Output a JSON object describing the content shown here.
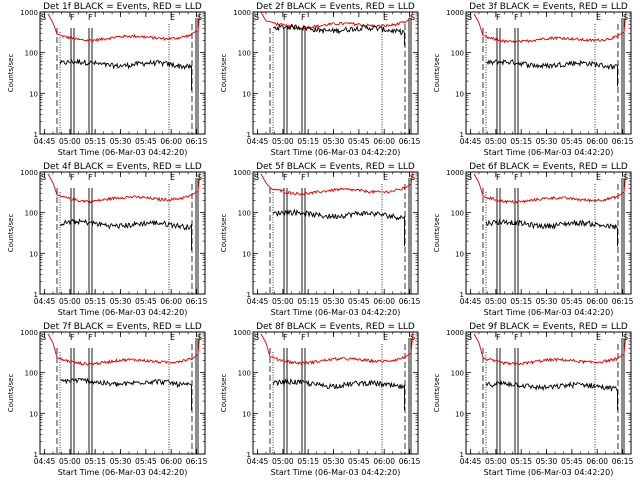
{
  "chart_data": [
    {
      "type": "line",
      "title": "Det 1f BLACK = Events, RED = LLD",
      "xlabel": "Start Time (06-Mar-03 04:42:20)",
      "ylabel": "Counts/sec",
      "x_ticks": [
        "04:45",
        "05:00",
        "05:15",
        "05:30",
        "05:45",
        "06:00",
        "06:15"
      ],
      "y_ticks": [
        "1",
        "10",
        "100",
        "1000"
      ],
      "ylim": [
        1,
        1000
      ],
      "series": [
        {
          "name": "Events",
          "color": "#000000",
          "level": 55,
          "end_drop": 12
        },
        {
          "name": "LLD",
          "color": "#e00000",
          "level": 220,
          "start": 900,
          "end": 1000
        }
      ],
      "markers": [
        {
          "label": "S",
          "time": "04:45"
        },
        {
          "label": "F",
          "time": "05:00"
        },
        {
          "label": "F",
          "time": "05:15"
        },
        {
          "label": "E",
          "time": "06:00"
        },
        {
          "label": "S",
          "time": "06:15"
        }
      ]
    },
    {
      "type": "line",
      "title": "Det 2f BLACK = Events, RED = LLD",
      "xlabel": "Start Time (06-Mar-03 04:42:20)",
      "ylabel": "Counts/sec",
      "x_ticks": [
        "04:45",
        "05:00",
        "05:15",
        "05:30",
        "05:45",
        "06:00",
        "06:15"
      ],
      "y_ticks": [
        "1",
        "10",
        "100",
        "1000"
      ],
      "ylim": [
        1,
        1000
      ],
      "series": [
        {
          "name": "Events",
          "color": "#000000",
          "level": 400,
          "end_drop": 150
        },
        {
          "name": "LLD",
          "color": "#e00000",
          "level": 450,
          "start": 1000,
          "end": 1000
        }
      ],
      "markers": [
        {
          "label": "S",
          "time": "04:45"
        },
        {
          "label": "F",
          "time": "05:00"
        },
        {
          "label": "F",
          "time": "05:15"
        },
        {
          "label": "E",
          "time": "06:00"
        },
        {
          "label": "S",
          "time": "06:15"
        }
      ]
    },
    {
      "type": "line",
      "title": "Det 3f BLACK = Events, RED = LLD",
      "xlabel": "Start Time (06-Mar-03 04:42:20)",
      "ylabel": "Counts/sec",
      "x_ticks": [
        "04:45",
        "05:00",
        "05:15",
        "05:30",
        "05:45",
        "06:00",
        "06:15"
      ],
      "y_ticks": [
        "1",
        "10",
        "100",
        "1000"
      ],
      "ylim": [
        1,
        1000
      ],
      "series": [
        {
          "name": "Events",
          "color": "#000000",
          "level": 55,
          "end_drop": 15
        },
        {
          "name": "LLD",
          "color": "#e00000",
          "level": 200,
          "start": 900,
          "end": 1000
        }
      ],
      "markers": [
        {
          "label": "S",
          "time": "04:45"
        },
        {
          "label": "F",
          "time": "05:00"
        },
        {
          "label": "F",
          "time": "05:15"
        },
        {
          "label": "E",
          "time": "06:00"
        },
        {
          "label": "S",
          "time": "06:15"
        }
      ]
    },
    {
      "type": "line",
      "title": "Det 4f BLACK = Events, RED = LLD",
      "xlabel": "Start Time (06-Mar-03 04:42:20)",
      "ylabel": "Counts/sec",
      "x_ticks": [
        "04:45",
        "05:00",
        "05:15",
        "05:30",
        "05:45",
        "06:00",
        "06:15"
      ],
      "y_ticks": [
        "1",
        "10",
        "100",
        "1000"
      ],
      "ylim": [
        1,
        1000
      ],
      "series": [
        {
          "name": "Events",
          "color": "#000000",
          "level": 55,
          "end_drop": 12
        },
        {
          "name": "LLD",
          "color": "#e00000",
          "level": 210,
          "start": 900,
          "end": 1000
        }
      ],
      "markers": [
        {
          "label": "S",
          "time": "04:45"
        },
        {
          "label": "F",
          "time": "05:00"
        },
        {
          "label": "F",
          "time": "05:15"
        },
        {
          "label": "E",
          "time": "06:00"
        },
        {
          "label": "S",
          "time": "06:15"
        }
      ]
    },
    {
      "type": "line",
      "title": "Det 5f BLACK = Events, RED = LLD",
      "xlabel": "Start Time (06-Mar-03 04:42:20)",
      "ylabel": "Counts/sec",
      "x_ticks": [
        "04:45",
        "05:00",
        "05:15",
        "05:30",
        "05:45",
        "06:00",
        "06:15"
      ],
      "y_ticks": [
        "1",
        "10",
        "100",
        "1000"
      ],
      "ylim": [
        1,
        1000
      ],
      "series": [
        {
          "name": "Events",
          "color": "#000000",
          "level": 95,
          "end_drop": 15
        },
        {
          "name": "LLD",
          "color": "#e00000",
          "level": 320,
          "start": 900,
          "end": 1000
        }
      ],
      "markers": [
        {
          "label": "S",
          "time": "04:45"
        },
        {
          "label": "F",
          "time": "05:00"
        },
        {
          "label": "F",
          "time": "05:15"
        },
        {
          "label": "E",
          "time": "06:00"
        },
        {
          "label": "S",
          "time": "06:15"
        }
      ]
    },
    {
      "type": "line",
      "title": "Det 6f BLACK = Events, RED = LLD",
      "xlabel": "Start Time (06-Mar-03 04:42:20)",
      "ylabel": "Counts/sec",
      "x_ticks": [
        "04:45",
        "05:00",
        "05:15",
        "05:30",
        "05:45",
        "06:00",
        "06:15"
      ],
      "y_ticks": [
        "1",
        "10",
        "100",
        "1000"
      ],
      "ylim": [
        1,
        1000
      ],
      "series": [
        {
          "name": "Events",
          "color": "#000000",
          "level": 55,
          "end_drop": 15
        },
        {
          "name": "LLD",
          "color": "#e00000",
          "level": 200,
          "start": 900,
          "end": 1000
        }
      ],
      "markers": [
        {
          "label": "S",
          "time": "04:45"
        },
        {
          "label": "F",
          "time": "05:00"
        },
        {
          "label": "F",
          "time": "05:15"
        },
        {
          "label": "E",
          "time": "06:00"
        },
        {
          "label": "S",
          "time": "06:15"
        }
      ]
    },
    {
      "type": "line",
      "title": "Det 7f BLACK = Events, RED = LLD",
      "xlabel": "Start Time (06-Mar-03 04:42:20)",
      "ylabel": "Counts/sec",
      "x_ticks": [
        "04:45",
        "05:00",
        "05:15",
        "05:30",
        "05:45",
        "06:00",
        "06:15"
      ],
      "y_ticks": [
        "1",
        "10",
        "100",
        "1000"
      ],
      "ylim": [
        1,
        1000
      ],
      "series": [
        {
          "name": "Events",
          "color": "#000000",
          "level": 60,
          "end_drop": 12
        },
        {
          "name": "LLD",
          "color": "#e00000",
          "level": 180,
          "start": 900,
          "end": 1000
        }
      ],
      "markers": [
        {
          "label": "S",
          "time": "04:45"
        },
        {
          "label": "F",
          "time": "05:00"
        },
        {
          "label": "F",
          "time": "05:15"
        },
        {
          "label": "E",
          "time": "06:00"
        },
        {
          "label": "S",
          "time": "06:15"
        }
      ]
    },
    {
      "type": "line",
      "title": "Det 8f BLACK = Events, RED = LLD",
      "xlabel": "Start Time (06-Mar-03 04:42:20)",
      "ylabel": "Counts/sec",
      "x_ticks": [
        "04:45",
        "05:00",
        "05:15",
        "05:30",
        "05:45",
        "06:00",
        "06:15"
      ],
      "y_ticks": [
        "1",
        "10",
        "100",
        "1000"
      ],
      "ylim": [
        1,
        1000
      ],
      "series": [
        {
          "name": "Events",
          "color": "#000000",
          "level": 55,
          "end_drop": 12
        },
        {
          "name": "LLD",
          "color": "#e00000",
          "level": 190,
          "start": 900,
          "end": 1000
        }
      ],
      "markers": [
        {
          "label": "S",
          "time": "04:45"
        },
        {
          "label": "F",
          "time": "05:00"
        },
        {
          "label": "F",
          "time": "05:15"
        },
        {
          "label": "E",
          "time": "06:00"
        },
        {
          "label": "S",
          "time": "06:15"
        }
      ]
    },
    {
      "type": "line",
      "title": "Det 9f BLACK = Events, RED = LLD",
      "xlabel": "Start Time (06-Mar-03 04:42:20)",
      "ylabel": "Counts/sec",
      "x_ticks": [
        "04:45",
        "05:00",
        "05:15",
        "05:30",
        "05:45",
        "06:00",
        "06:15"
      ],
      "y_ticks": [
        "1",
        "10",
        "100",
        "1000"
      ],
      "ylim": [
        1,
        1000
      ],
      "series": [
        {
          "name": "Events",
          "color": "#000000",
          "level": 50,
          "end_drop": 12
        },
        {
          "name": "LLD",
          "color": "#e00000",
          "level": 180,
          "start": 900,
          "end": 1000
        }
      ],
      "markers": [
        {
          "label": "S",
          "time": "04:45"
        },
        {
          "label": "F",
          "time": "05:00"
        },
        {
          "label": "F",
          "time": "05:15"
        },
        {
          "label": "E",
          "time": "06:00"
        },
        {
          "label": "S",
          "time": "06:15"
        }
      ]
    }
  ]
}
